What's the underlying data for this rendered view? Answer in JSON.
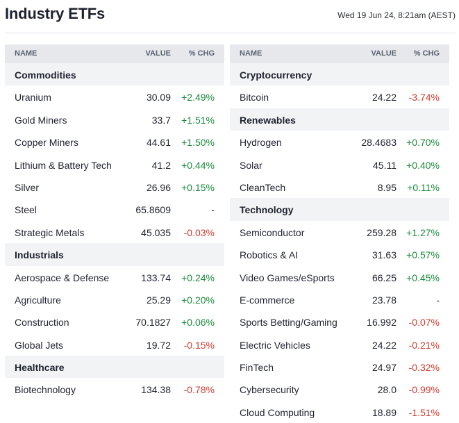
{
  "page": {
    "title": "Industry ETFs",
    "timestamp": "Wed 19 Jun 24, 8:21am (AEST)"
  },
  "columns_header": {
    "name": "NAME",
    "value": "VALUE",
    "chg": "% CHG"
  },
  "left": [
    {
      "category": "Commodities",
      "items": [
        {
          "name": "Uranium",
          "value": "30.09",
          "chg": "+2.49%",
          "dir": "pos"
        },
        {
          "name": "Gold Miners",
          "value": "33.7",
          "chg": "+1.51%",
          "dir": "pos"
        },
        {
          "name": "Copper Miners",
          "value": "44.61",
          "chg": "+1.50%",
          "dir": "pos"
        },
        {
          "name": "Lithium & Battery Tech",
          "value": "41.2",
          "chg": "+0.44%",
          "dir": "pos"
        },
        {
          "name": "Silver",
          "value": "26.96",
          "chg": "+0.15%",
          "dir": "pos"
        },
        {
          "name": "Steel",
          "value": "65.8609",
          "chg": "-",
          "dir": "flat"
        },
        {
          "name": "Strategic Metals",
          "value": "45.035",
          "chg": "-0.03%",
          "dir": "neg"
        }
      ]
    },
    {
      "category": "Industrials",
      "items": [
        {
          "name": "Aerospace & Defense",
          "value": "133.74",
          "chg": "+0.24%",
          "dir": "pos"
        },
        {
          "name": "Agriculture",
          "value": "25.29",
          "chg": "+0.20%",
          "dir": "pos"
        },
        {
          "name": "Construction",
          "value": "70.1827",
          "chg": "+0.06%",
          "dir": "pos"
        },
        {
          "name": "Global Jets",
          "value": "19.72",
          "chg": "-0.15%",
          "dir": "neg"
        }
      ]
    },
    {
      "category": "Healthcare",
      "items": [
        {
          "name": "Biotechnology",
          "value": "134.38",
          "chg": "-0.78%",
          "dir": "neg"
        }
      ]
    }
  ],
  "right": [
    {
      "category": "Cryptocurrency",
      "items": [
        {
          "name": "Bitcoin",
          "value": "24.22",
          "chg": "-3.74%",
          "dir": "neg"
        }
      ]
    },
    {
      "category": "Renewables",
      "items": [
        {
          "name": "Hydrogen",
          "value": "28.4683",
          "chg": "+0.70%",
          "dir": "pos"
        },
        {
          "name": "Solar",
          "value": "45.11",
          "chg": "+0.40%",
          "dir": "pos"
        },
        {
          "name": "CleanTech",
          "value": "8.95",
          "chg": "+0.11%",
          "dir": "pos"
        }
      ]
    },
    {
      "category": "Technology",
      "items": [
        {
          "name": "Semiconductor",
          "value": "259.28",
          "chg": "+1.27%",
          "dir": "pos"
        },
        {
          "name": "Robotics & AI",
          "value": "31.63",
          "chg": "+0.57%",
          "dir": "pos"
        },
        {
          "name": "Video Games/eSports",
          "value": "66.25",
          "chg": "+0.45%",
          "dir": "pos"
        },
        {
          "name": "E-commerce",
          "value": "23.78",
          "chg": "-",
          "dir": "flat"
        },
        {
          "name": "Sports Betting/Gaming",
          "value": "16.992",
          "chg": "-0.07%",
          "dir": "neg"
        },
        {
          "name": "Electric Vehicles",
          "value": "24.22",
          "chg": "-0.21%",
          "dir": "neg"
        },
        {
          "name": "FinTech",
          "value": "24.97",
          "chg": "-0.32%",
          "dir": "neg"
        },
        {
          "name": "Cybersecurity",
          "value": "28.0",
          "chg": "-0.99%",
          "dir": "neg"
        },
        {
          "name": "Cloud Computing",
          "value": "18.89",
          "chg": "-1.51%",
          "dir": "neg"
        }
      ]
    }
  ],
  "colors": {
    "positive": "#1a8a3a",
    "negative": "#d23c2f",
    "header_bg": "#e6e8ec",
    "category_bg": "#f2f3f5"
  }
}
